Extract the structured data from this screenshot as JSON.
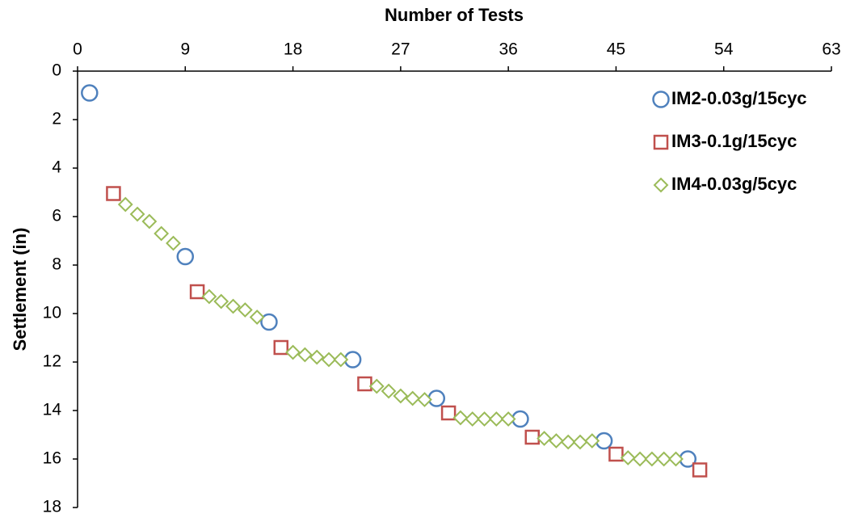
{
  "chart_data": {
    "type": "scatter",
    "xlabel": "Number of Tests",
    "ylabel": "Settlement (in)",
    "xlim": [
      0,
      63
    ],
    "xticks": [
      0,
      9,
      18,
      27,
      36,
      45,
      54,
      63
    ],
    "ylim": [
      0,
      18
    ],
    "yticks": [
      0,
      2,
      4,
      6,
      8,
      10,
      12,
      14,
      16,
      18
    ],
    "y_reversed": true,
    "x_axis_position": "top",
    "legend": "upper right",
    "series": [
      {
        "name": "IM2-0.03g/15cyc",
        "color": "#4f81bd",
        "marker": "circle",
        "x": [
          1,
          9,
          16,
          23,
          30,
          37,
          44,
          51
        ],
        "values": [
          0.9,
          7.65,
          10.35,
          11.9,
          13.5,
          14.35,
          15.25,
          16.0
        ]
      },
      {
        "name": "IM3-0.1g/15cyc",
        "color": "#c0504d",
        "marker": "square",
        "x": [
          3,
          10,
          17,
          24,
          31,
          38,
          45,
          52
        ],
        "values": [
          5.05,
          9.1,
          11.4,
          12.9,
          14.1,
          15.1,
          15.8,
          16.45
        ]
      },
      {
        "name": "IM4-0.03g/5cyc",
        "color": "#9bbb59",
        "marker": "diamond",
        "x": [
          4,
          5,
          6,
          7,
          8,
          11,
          12,
          13,
          14,
          15,
          18,
          19,
          20,
          21,
          22,
          25,
          26,
          27,
          28,
          29,
          32,
          33,
          34,
          35,
          36,
          39,
          40,
          41,
          42,
          43,
          46,
          47,
          48,
          49,
          50
        ],
        "values": [
          5.5,
          5.9,
          6.2,
          6.7,
          7.1,
          9.3,
          9.5,
          9.7,
          9.85,
          10.15,
          11.6,
          11.7,
          11.8,
          11.9,
          11.9,
          13.0,
          13.2,
          13.4,
          13.5,
          13.55,
          14.3,
          14.35,
          14.35,
          14.35,
          14.35,
          15.15,
          15.25,
          15.3,
          15.3,
          15.25,
          15.95,
          16.0,
          16.0,
          16.0,
          16.0
        ]
      }
    ]
  }
}
